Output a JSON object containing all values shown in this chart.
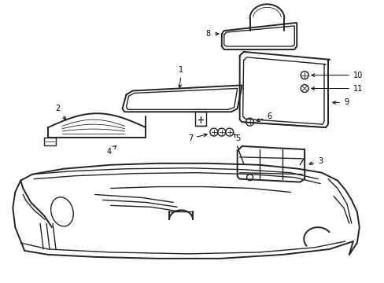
{
  "background_color": "#ffffff",
  "line_color": "#222222",
  "text_color": "#000000",
  "fig_width": 4.89,
  "fig_height": 3.6,
  "dpi": 100
}
